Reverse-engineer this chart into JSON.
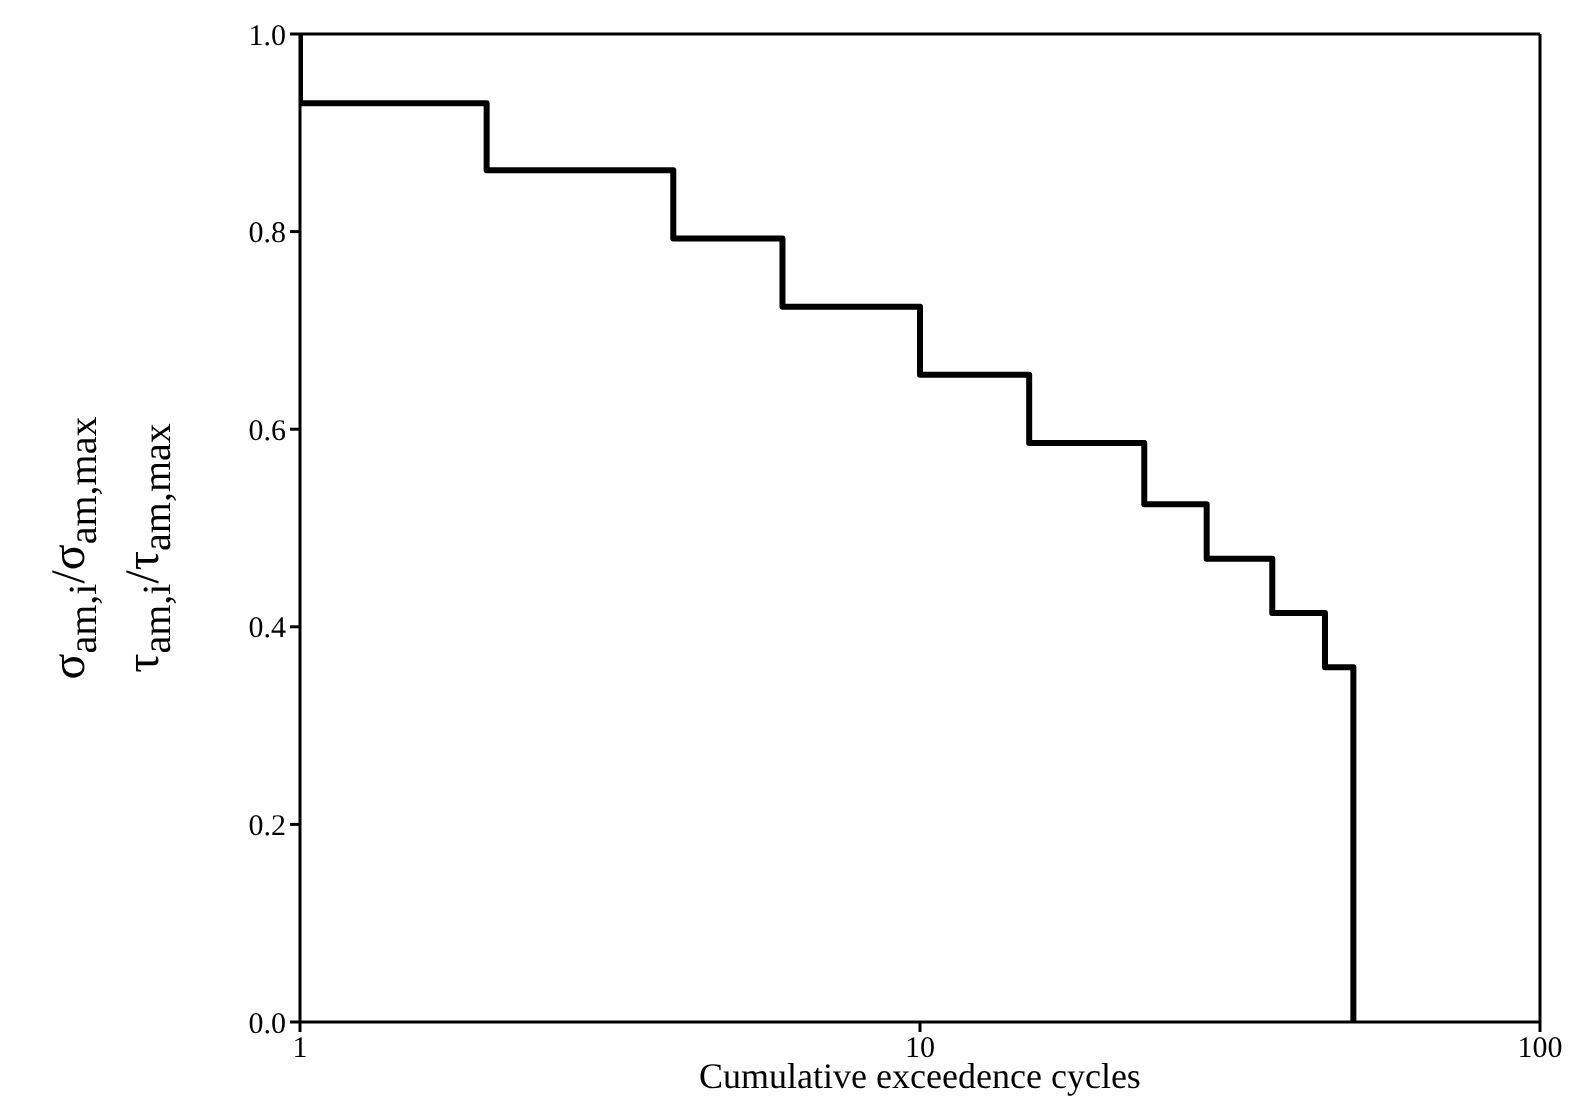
{
  "chart_data": {
    "type": "step",
    "xlabel": "Cumulative exceedence cycles",
    "ylabel": "σ$_{am,i}$/σ$_{am,max}$\nτ$_{am,i}$/τ$_{am,max}$",
    "x": [
      1,
      2,
      4,
      6,
      10,
      15,
      23,
      29,
      37,
      45,
      50,
      50
    ],
    "series": [
      {
        "color": "#000000",
        "values": [
          1.0,
          0.93,
          0.862,
          0.793,
          0.724,
          0.655,
          0.586,
          0.524,
          0.469,
          0.414,
          0.359,
          0.0
        ]
      }
    ],
    "log": "x",
    "xlim": [
      1,
      100
    ],
    "xticks": [
      1,
      10,
      100
    ],
    "ylim": [
      0,
      1
    ],
    "yticks": [
      {
        "value": 0,
        "label": "0.0"
      },
      {
        "value": 0.2,
        "label": "0.2"
      },
      {
        "value": 0.4,
        "label": "0.4"
      },
      {
        "value": 0.6,
        "label": "0.6"
      },
      {
        "value": 0.8,
        "label": "0.8"
      },
      {
        "value": 1,
        "label": "1.0"
      }
    ],
    "marker": "none",
    "line_style": "solid"
  }
}
